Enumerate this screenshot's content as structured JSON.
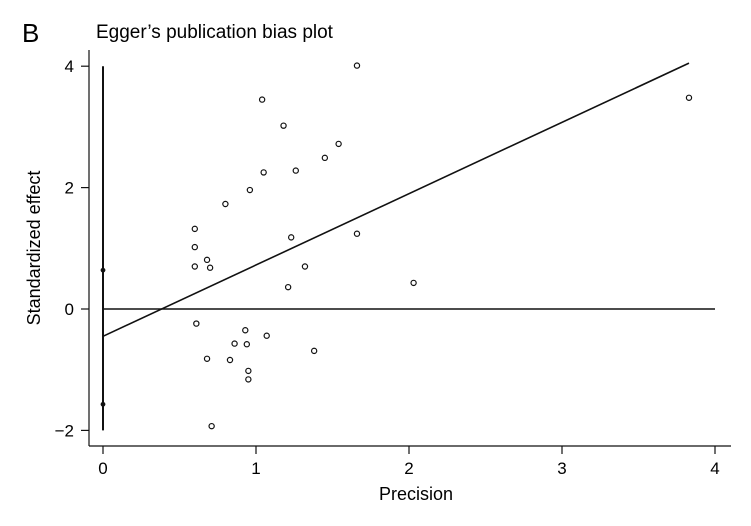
{
  "panel_label": "B",
  "chart_data": {
    "type": "scatter",
    "title": "Egger’s publication bias plot",
    "xlabel": "Precision",
    "ylabel": "Standardized effect",
    "xlim": [
      0,
      4
    ],
    "ylim": [
      -2,
      4
    ],
    "xticks": [
      0,
      1,
      2,
      3,
      4
    ],
    "yticks": [
      -2,
      0,
      2,
      4
    ],
    "grid": false,
    "legend": "none",
    "series": [
      {
        "marker": "hollow-circle",
        "points": [
          [
            1.66,
            4.01
          ],
          [
            1.04,
            3.45
          ],
          [
            3.83,
            3.48
          ],
          [
            1.18,
            3.02
          ],
          [
            1.54,
            2.72
          ],
          [
            1.45,
            2.49
          ],
          [
            1.05,
            2.25
          ],
          [
            1.26,
            2.28
          ],
          [
            0.96,
            1.96
          ],
          [
            0.8,
            1.73
          ],
          [
            0.6,
            1.32
          ],
          [
            0.6,
            1.02
          ],
          [
            1.23,
            1.18
          ],
          [
            1.66,
            1.24
          ],
          [
            0.68,
            0.81
          ],
          [
            0.6,
            0.7
          ],
          [
            0.7,
            0.68
          ],
          [
            1.32,
            0.7
          ],
          [
            1.21,
            0.36
          ],
          [
            2.03,
            0.43
          ],
          [
            0.61,
            -0.24
          ],
          [
            0.93,
            -0.35
          ],
          [
            1.07,
            -0.44
          ],
          [
            0.86,
            -0.57
          ],
          [
            0.94,
            -0.58
          ],
          [
            1.38,
            -0.69
          ],
          [
            0.68,
            -0.82
          ],
          [
            0.83,
            -0.84
          ],
          [
            0.95,
            -1.02
          ],
          [
            0.95,
            -1.16
          ],
          [
            0.71,
            -1.93
          ]
        ]
      }
    ],
    "regression_line": {
      "intercept": -0.45,
      "slope": 1.175,
      "x_range": [
        0,
        3.83
      ]
    },
    "reference_line_y": 0,
    "intercept_interval": {
      "x": 0,
      "lower": -1.57,
      "upper": 0.64
    }
  }
}
